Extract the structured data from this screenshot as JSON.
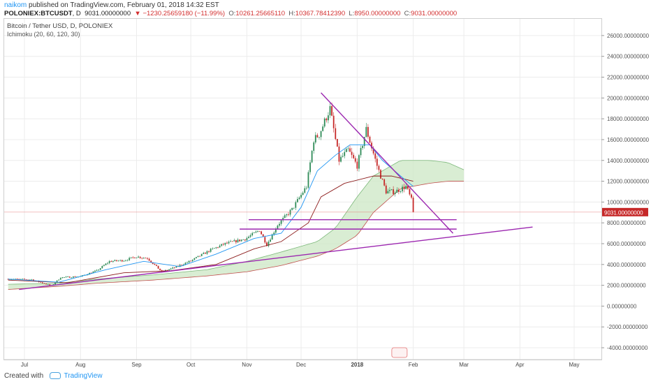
{
  "header": {
    "user": "naikom",
    "published_text": "published on TradingView.com, February 01, 2018 14:32 EST",
    "symbol": "POLONIEX:BTCUSDT",
    "interval": "D",
    "last_price": "9031.00000000",
    "change": "▼ −1230.25659180 (−11.99%)",
    "o_label": "O:",
    "o_value": "10261.25665110",
    "h_label": "H:",
    "h_value": "10367.78412390",
    "l_label": "L:",
    "l_value": "8950.00000000",
    "c_label": "C:",
    "c_value": "9031.00000000"
  },
  "legend": {
    "title": "Bitcoin / Tether USD, D, POLONIEX",
    "indicator": "Ichimoku (20, 60, 120, 30)"
  },
  "footer": {
    "created_with": "Created with",
    "brand": "TradingView"
  },
  "colors": {
    "up": "#2e8b57",
    "down": "#c62828",
    "conversion": "#2196f3",
    "base": "#8b1a1a",
    "cloud_bull": "#cfe8c8",
    "cloud_bear": "#f3d6d6",
    "trendline": "#9c27b0",
    "grid": "#ececec"
  },
  "chart_data": {
    "type": "candlestick",
    "symbol": "BTCUSDT",
    "exchange": "POLONIEX",
    "interval": "1D",
    "ylim": [
      -4500,
      27000
    ],
    "y_ticks": [
      "26000.00000000",
      "24000.00000000",
      "22000.00000000",
      "20000.00000000",
      "18000.00000000",
      "16000.00000000",
      "14000.00000000",
      "12000.00000000",
      "10000.00000000",
      "8000.00000000",
      "6000.00000000",
      "4000.00000000",
      "2000.00000000",
      "0.00000000",
      "-2000.00000000",
      "-4000.00000000"
    ],
    "x_ticks": [
      {
        "date": "2017-07-01",
        "label": "Jul"
      },
      {
        "date": "2017-08-01",
        "label": "Aug"
      },
      {
        "date": "2017-09-01",
        "label": "Sep"
      },
      {
        "date": "2017-10-01",
        "label": "Oct"
      },
      {
        "date": "2017-11-01",
        "label": "Nov"
      },
      {
        "date": "2017-12-01",
        "label": "Dec"
      },
      {
        "date": "2018-01-01",
        "label": "2018"
      },
      {
        "date": "2018-02-01",
        "label": "Feb"
      },
      {
        "date": "2018-03-01",
        "label": "Mar"
      },
      {
        "date": "2018-04-01",
        "label": "Apr"
      },
      {
        "date": "2018-05-01",
        "label": "May"
      }
    ],
    "last_price_label": "9031.00000000",
    "last_price": 9031,
    "price_path": [
      [
        "2017-06-22",
        2600
      ],
      [
        "2017-07-05",
        2550
      ],
      [
        "2017-07-16",
        1950
      ],
      [
        "2017-07-21",
        2750
      ],
      [
        "2017-08-01",
        2850
      ],
      [
        "2017-08-10",
        3400
      ],
      [
        "2017-08-17",
        4300
      ],
      [
        "2017-08-25",
        4400
      ],
      [
        "2017-09-01",
        4750
      ],
      [
        "2017-09-07",
        4600
      ],
      [
        "2017-09-15",
        3300
      ],
      [
        "2017-09-22",
        3700
      ],
      [
        "2017-10-01",
        4350
      ],
      [
        "2017-10-12",
        5400
      ],
      [
        "2017-10-20",
        6000
      ],
      [
        "2017-10-31",
        6450
      ],
      [
        "2017-11-08",
        7300
      ],
      [
        "2017-11-12",
        5900
      ],
      [
        "2017-11-18",
        7800
      ],
      [
        "2017-11-26",
        9300
      ],
      [
        "2017-12-04",
        11500
      ],
      [
        "2017-12-08",
        16000
      ],
      [
        "2017-12-11",
        16500
      ],
      [
        "2017-12-17",
        19000
      ],
      [
        "2017-12-22",
        14000
      ],
      [
        "2017-12-27",
        15000
      ],
      [
        "2018-01-01",
        13500
      ],
      [
        "2018-01-06",
        17000
      ],
      [
        "2018-01-12",
        13500
      ],
      [
        "2018-01-17",
        11000
      ],
      [
        "2018-01-22",
        11000
      ],
      [
        "2018-01-28",
        11500
      ],
      [
        "2018-01-31",
        10200
      ],
      [
        "2018-02-01",
        9031
      ]
    ],
    "conversion_line": [
      [
        "2017-06-22",
        2600
      ],
      [
        "2017-07-20",
        2300
      ],
      [
        "2017-08-15",
        3500
      ],
      [
        "2017-09-05",
        4300
      ],
      [
        "2017-09-25",
        3800
      ],
      [
        "2017-10-15",
        5000
      ],
      [
        "2017-11-05",
        6500
      ],
      [
        "2017-11-20",
        7000
      ],
      [
        "2017-12-01",
        9500
      ],
      [
        "2017-12-10",
        13000
      ],
      [
        "2017-12-20",
        14500
      ],
      [
        "2017-12-28",
        15500
      ],
      [
        "2018-01-08",
        15500
      ],
      [
        "2018-01-15",
        14000
      ],
      [
        "2018-01-25",
        12500
      ],
      [
        "2018-02-01",
        11500
      ]
    ],
    "base_line": [
      [
        "2017-06-22",
        2500
      ],
      [
        "2017-07-25",
        2250
      ],
      [
        "2017-08-25",
        3200
      ],
      [
        "2017-09-20",
        3400
      ],
      [
        "2017-10-15",
        4000
      ],
      [
        "2017-11-05",
        5500
      ],
      [
        "2017-11-20",
        6200
      ],
      [
        "2017-12-05",
        8000
      ],
      [
        "2017-12-12",
        10500
      ],
      [
        "2017-12-25",
        11800
      ],
      [
        "2018-01-10",
        12500
      ],
      [
        "2018-01-20",
        12500
      ],
      [
        "2018-02-01",
        12000
      ]
    ],
    "cloud_span_a": [
      [
        "2017-06-22",
        2100
      ],
      [
        "2017-07-20",
        2200
      ],
      [
        "2017-08-10",
        2600
      ],
      [
        "2017-09-10",
        3000
      ],
      [
        "2017-10-10",
        3500
      ],
      [
        "2017-11-01",
        4300
      ],
      [
        "2017-11-20",
        5200
      ],
      [
        "2017-12-10",
        6200
      ],
      [
        "2017-12-20",
        7500
      ],
      [
        "2018-01-01",
        10500
      ],
      [
        "2018-01-10",
        12500
      ],
      [
        "2018-01-25",
        14000
      ],
      [
        "2018-02-10",
        14000
      ],
      [
        "2018-02-20",
        13800
      ],
      [
        "2018-03-01",
        13100
      ]
    ],
    "cloud_span_b": [
      [
        "2017-06-22",
        1600
      ],
      [
        "2017-07-20",
        1900
      ],
      [
        "2017-08-10",
        2200
      ],
      [
        "2017-09-10",
        2500
      ],
      [
        "2017-10-10",
        2900
      ],
      [
        "2017-11-01",
        3300
      ],
      [
        "2017-11-20",
        3900
      ],
      [
        "2017-12-10",
        4800
      ],
      [
        "2017-12-20",
        5500
      ],
      [
        "2018-01-01",
        6800
      ],
      [
        "2018-01-10",
        9000
      ],
      [
        "2018-01-25",
        11300
      ],
      [
        "2018-02-10",
        11800
      ],
      [
        "2018-02-20",
        12000
      ],
      [
        "2018-03-01",
        12000
      ]
    ],
    "drawings": [
      {
        "kind": "trendline",
        "from": [
          "2017-06-28",
          1600
        ],
        "to": [
          "2018-04-08",
          7600
        ]
      },
      {
        "kind": "trendline",
        "from": [
          "2017-12-12",
          20500
        ],
        "to": [
          "2018-02-23",
          7000
        ]
      },
      {
        "kind": "horizontal",
        "y": 8300,
        "from": "2017-11-02",
        "to": "2018-02-25"
      },
      {
        "kind": "horizontal",
        "y": 7400,
        "from": "2017-10-28",
        "to": "2018-02-25"
      }
    ]
  }
}
